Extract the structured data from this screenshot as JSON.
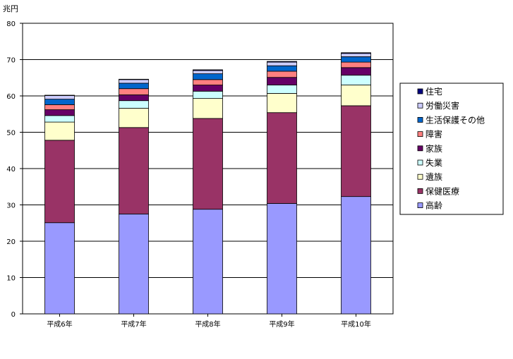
{
  "chart_data": {
    "type": "bar",
    "stacked": true,
    "ylabel": "兆円",
    "ylim": [
      0,
      80
    ],
    "yticks": [
      0,
      10,
      20,
      30,
      40,
      50,
      60,
      70,
      80
    ],
    "grid": true,
    "legend_position": "right",
    "categories": [
      "平成6年",
      "平成7年",
      "平成8年",
      "平成9年",
      "平成10年"
    ],
    "series": [
      {
        "name": "高齢",
        "color": "#9999ff",
        "values": [
          25.1,
          27.5,
          28.8,
          30.4,
          32.3
        ]
      },
      {
        "name": "保健医療",
        "color": "#993366",
        "values": [
          22.7,
          23.8,
          25.0,
          25.0,
          25.0
        ]
      },
      {
        "name": "遺族",
        "color": "#ffffcc",
        "values": [
          5.0,
          5.3,
          5.5,
          5.3,
          5.7
        ]
      },
      {
        "name": "失業",
        "color": "#ccffff",
        "values": [
          1.8,
          2.1,
          2.0,
          2.3,
          2.7
        ]
      },
      {
        "name": "家族",
        "color": "#660066",
        "values": [
          1.6,
          1.6,
          1.7,
          2.1,
          2.1
        ]
      },
      {
        "name": "障害",
        "color": "#ff8080",
        "values": [
          1.4,
          1.7,
          1.5,
          1.7,
          1.5
        ]
      },
      {
        "name": "生活保護その他",
        "color": "#0066cc",
        "values": [
          1.5,
          1.5,
          1.6,
          1.5,
          1.5
        ]
      },
      {
        "name": "労働災害",
        "color": "#ccccff",
        "values": [
          1.0,
          1.0,
          0.9,
          1.0,
          0.9
        ]
      },
      {
        "name": "住宅",
        "color": "#000080",
        "values": [
          0.1,
          0.1,
          0.2,
          0.2,
          0.2
        ]
      }
    ]
  }
}
